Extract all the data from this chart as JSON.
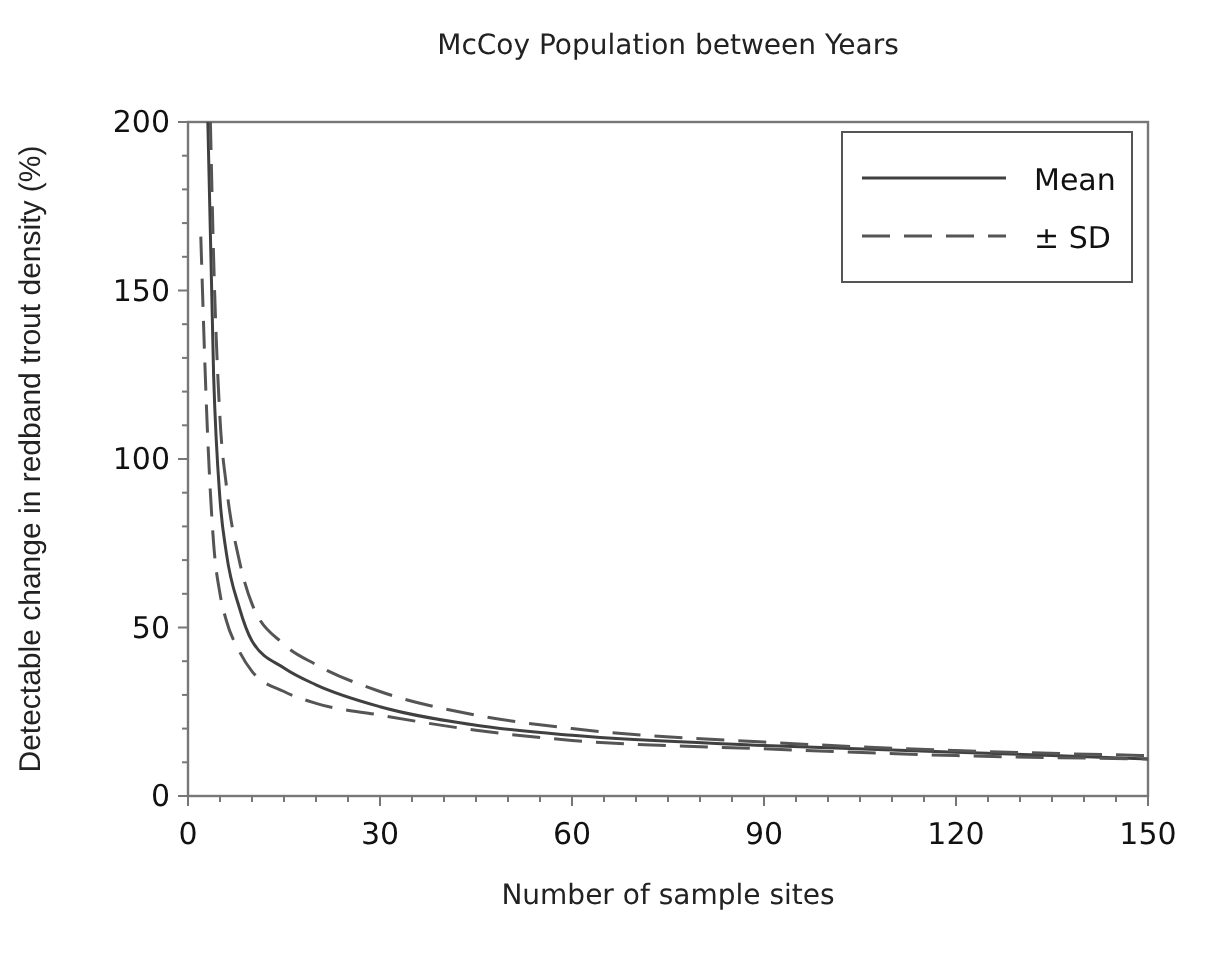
{
  "chart_data": {
    "type": "line",
    "title": "McCoy Population between Years",
    "xlabel": "Number of sample sites",
    "ylabel": "Detectable change in redband trout density (%)",
    "xlim": [
      0,
      150
    ],
    "ylim": [
      0,
      200
    ],
    "xticks": [
      0,
      {
        "value": 5,
        "label": null
      },
      {
        "value": 10,
        "label": null
      },
      {
        "value": 15,
        "label": null
      },
      {
        "value": 20,
        "label": null
      },
      {
        "value": 25,
        "label": null
      },
      30,
      {
        "value": 35,
        "label": null
      },
      {
        "value": 40,
        "label": null
      },
      {
        "value": 45,
        "label": null
      },
      {
        "value": 50,
        "label": null
      },
      {
        "value": 55,
        "label": null
      },
      60,
      {
        "value": 65,
        "label": null
      },
      {
        "value": 70,
        "label": null
      },
      {
        "value": 75,
        "label": null
      },
      {
        "value": 80,
        "label": null
      },
      {
        "value": 85,
        "label": null
      },
      90,
      {
        "value": 95,
        "label": null
      },
      {
        "value": 100,
        "label": null
      },
      {
        "value": 105,
        "label": null
      },
      {
        "value": 110,
        "label": null
      },
      {
        "value": 115,
        "label": null
      },
      120,
      {
        "value": 125,
        "label": null
      },
      {
        "value": 130,
        "label": null
      },
      {
        "value": 135,
        "label": null
      },
      {
        "value": 140,
        "label": null
      },
      {
        "value": 145,
        "label": null
      },
      150
    ],
    "yticks": [
      0,
      {
        "value": 10,
        "label": null
      },
      {
        "value": 20,
        "label": null
      },
      {
        "value": 30,
        "label": null
      },
      {
        "value": 40,
        "label": null
      },
      50,
      {
        "value": 60,
        "label": null
      },
      {
        "value": 70,
        "label": null
      },
      {
        "value": 80,
        "label": null
      },
      {
        "value": 90,
        "label": null
      },
      100,
      {
        "value": 110,
        "label": null
      },
      {
        "value": 120,
        "label": null
      },
      {
        "value": 130,
        "label": null
      },
      {
        "value": 140,
        "label": null
      },
      150,
      {
        "value": 160,
        "label": null
      },
      {
        "value": 170,
        "label": null
      },
      {
        "value": 180,
        "label": null
      },
      {
        "value": 190,
        "label": null
      },
      200
    ],
    "grid": false,
    "legend": "top right",
    "marker": "none",
    "series": [
      {
        "name": "Mean",
        "color": "#404040",
        "line_style": "solid",
        "x": [
          3.1,
          4,
          5,
          6,
          8,
          10,
          15,
          20,
          30,
          45,
          60,
          90,
          120,
          150
        ],
        "values": [
          200,
          125,
          88,
          72,
          56,
          46,
          38,
          33,
          26.5,
          21,
          18,
          15,
          13,
          11
        ]
      },
      {
        "name": "± SD",
        "color": "#555555",
        "line_style": "dashed",
        "x": [
          3.5,
          4,
          5,
          6,
          8,
          10,
          15,
          20,
          30,
          45,
          60,
          90,
          120,
          150
        ],
        "values": [
          200,
          160,
          112,
          92,
          70,
          57,
          45,
          39,
          31,
          24,
          20,
          16,
          13.5,
          12
        ]
      },
      {
        "color": "#555555",
        "line_style": "dashed",
        "x": [
          2,
          3,
          4,
          5,
          6,
          8,
          10,
          15,
          20,
          30,
          45,
          60,
          90,
          120,
          150
        ],
        "values": [
          166,
          110,
          75,
          60,
          52,
          43,
          37,
          31,
          27.5,
          24,
          19.5,
          16.5,
          14,
          12,
          11
        ]
      }
    ]
  }
}
